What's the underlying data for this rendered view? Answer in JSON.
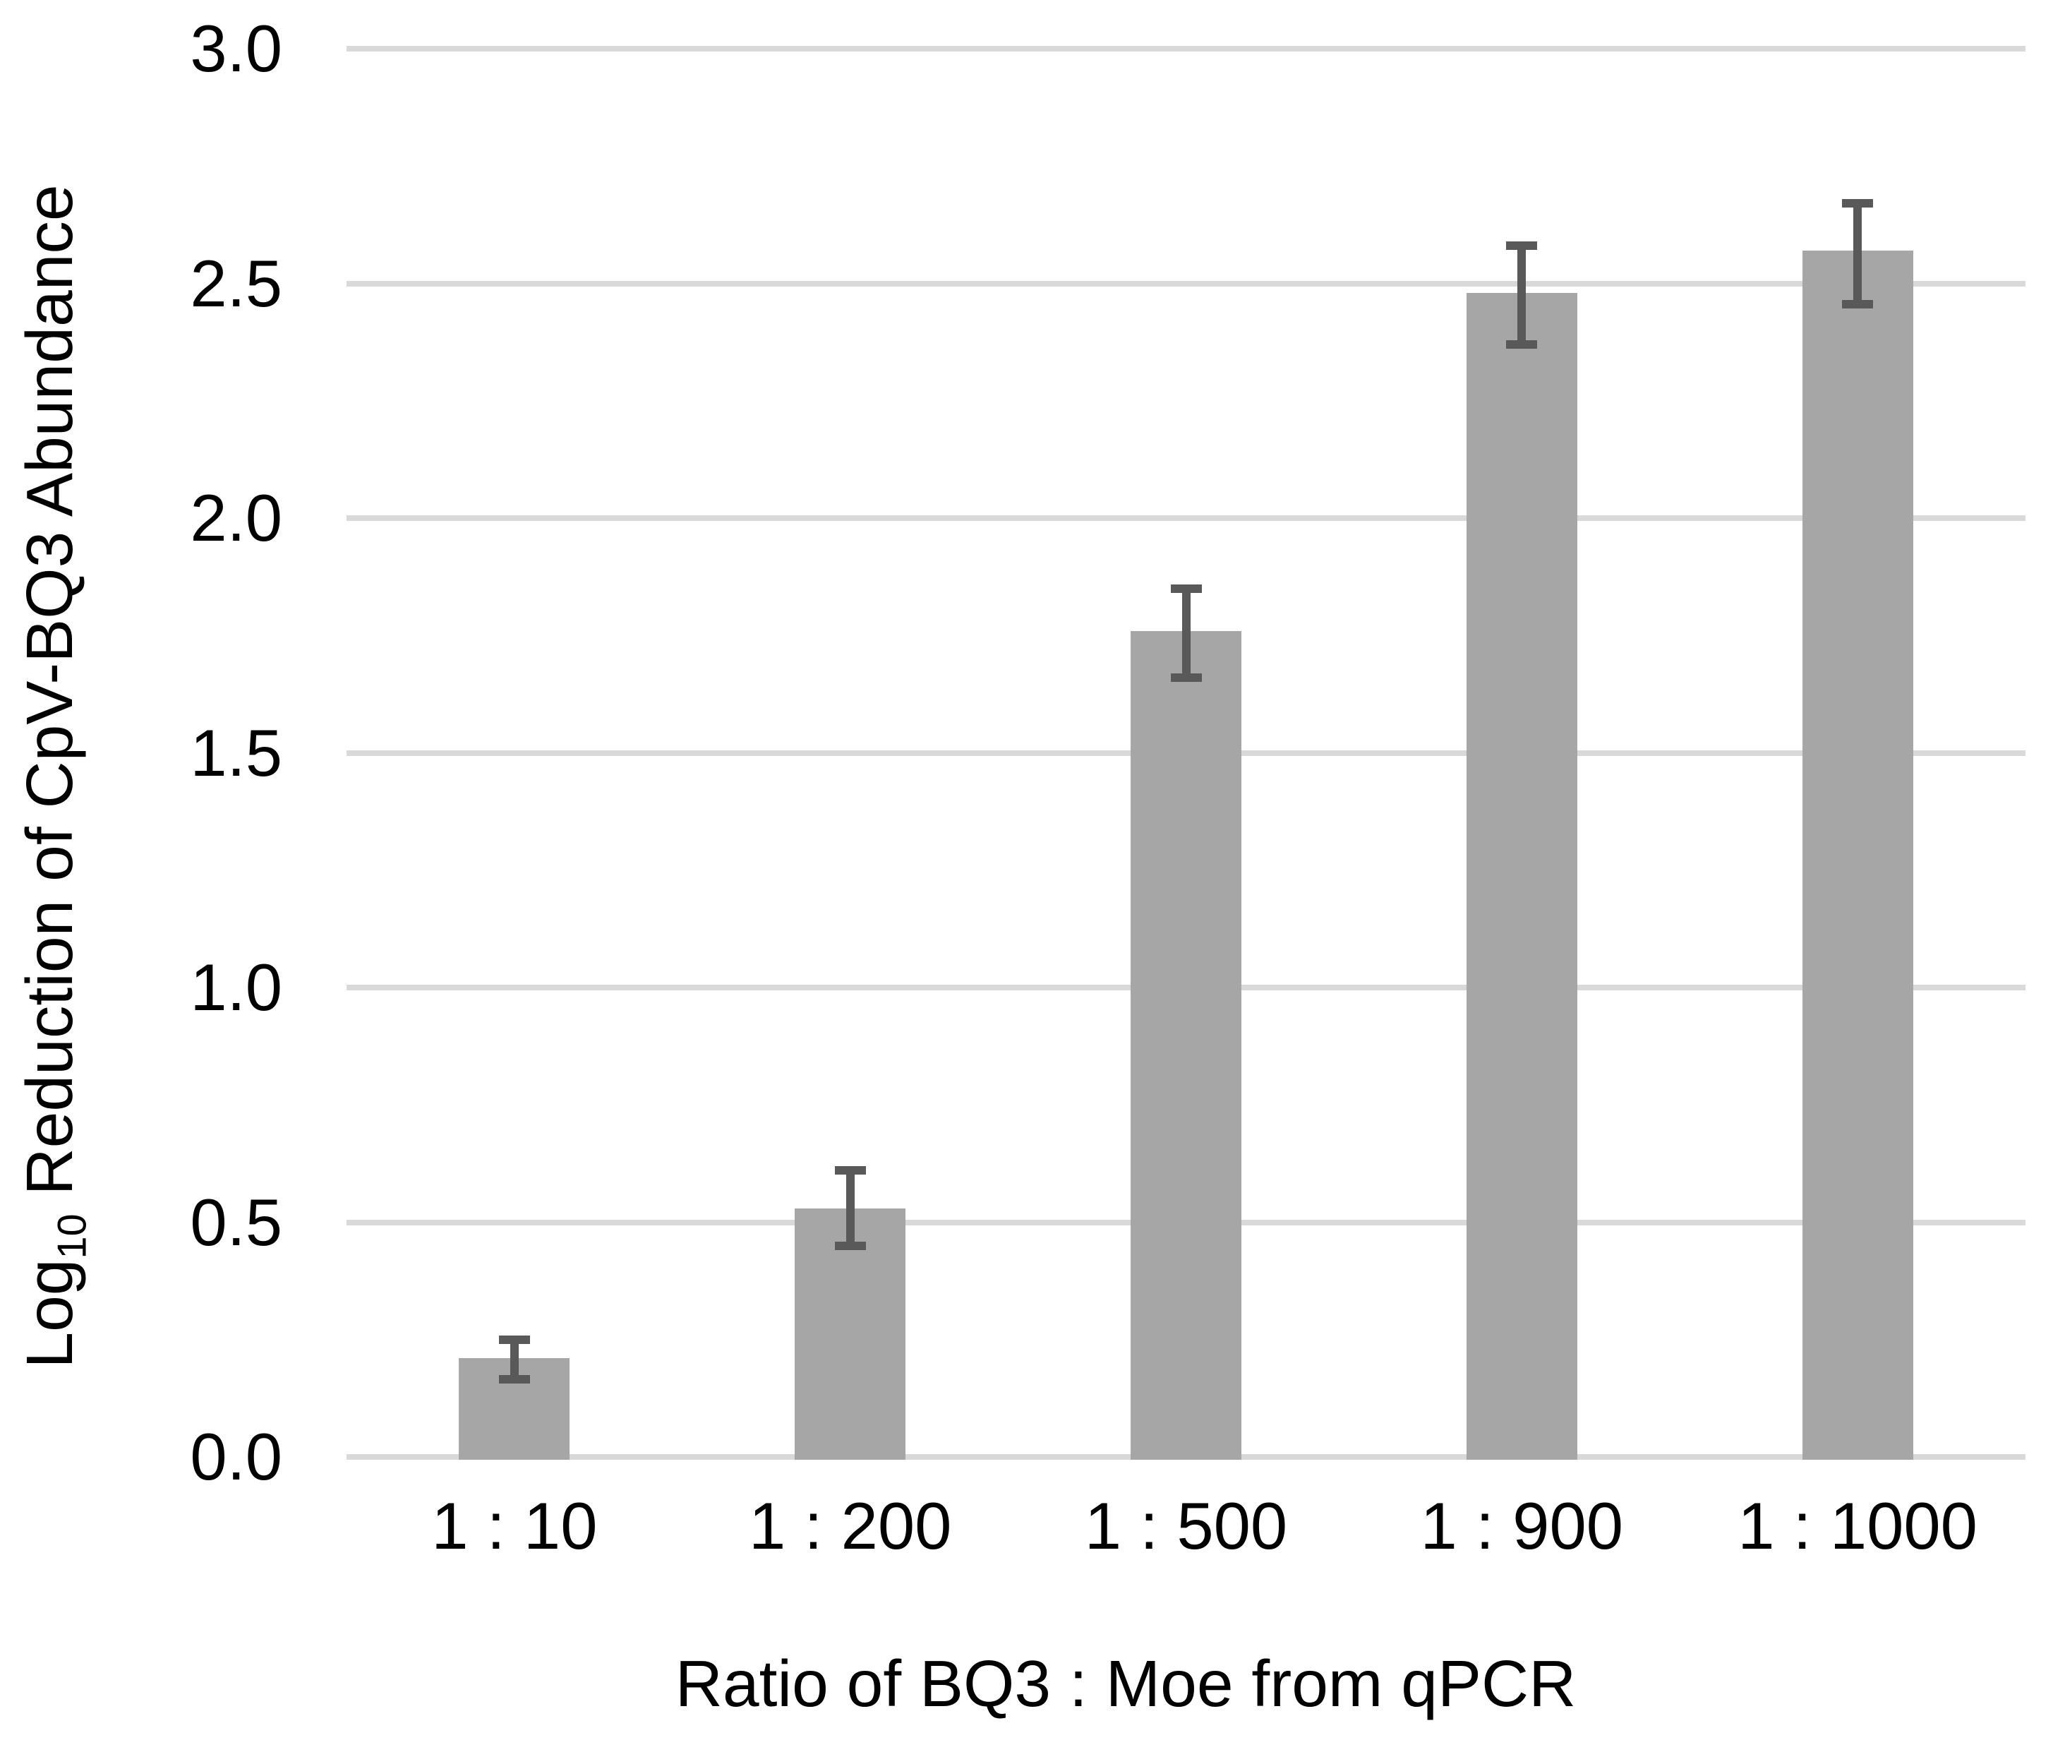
{
  "chart_data": {
    "type": "bar",
    "title": "",
    "xlabel": "Ratio of BQ3 : Moe from qPCR",
    "ylabel": "Log10 Reduction of CpV-BQ3 Abundance",
    "ylabel_parts": {
      "prefix": "Log",
      "subscript": "10",
      "suffix": " Reduction of CpV-BQ3 Abundance"
    },
    "categories": [
      "1 : 10",
      "1 : 200",
      "1 : 500",
      "1 : 900",
      "1 : 1000"
    ],
    "values": [
      0.21,
      0.53,
      1.76,
      2.48,
      2.57
    ],
    "error_plus": [
      0.04,
      0.08,
      0.09,
      0.1,
      0.1
    ],
    "error_minus": [
      0.045,
      0.08,
      0.1,
      0.11,
      0.115
    ],
    "y_ticks": [
      "0.0",
      "0.5",
      "1.0",
      "1.5",
      "2.0",
      "2.5",
      "3.0"
    ],
    "ylim": [
      0.0,
      3.0
    ],
    "grid": true,
    "legend": false,
    "colors": {
      "bar": "#a6a6a6",
      "error_bar": "#595959",
      "gridline": "#d9d9d9",
      "text": "#000000",
      "background": "#ffffff"
    }
  }
}
